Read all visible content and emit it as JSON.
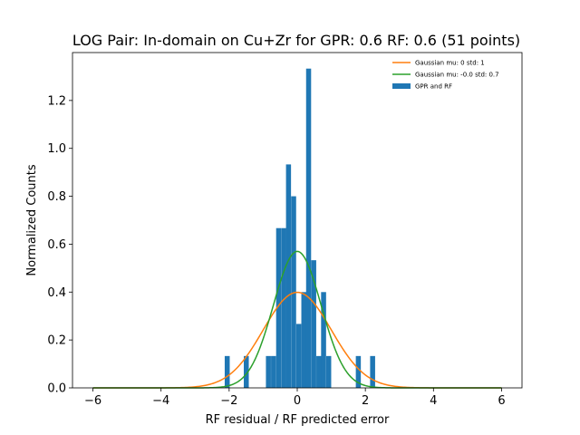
{
  "chart_data": {
    "type": "bar",
    "title": "LOG Pair: In-domain on Cu+Zr for GPR: 0.6 RF: 0.6 (51 points)",
    "xlabel": "RF residual / RF predicted error",
    "ylabel": "Normalized Counts",
    "xlim": [
      -6.6,
      6.6
    ],
    "ylim": [
      0,
      1.4
    ],
    "xticks": [
      -6,
      -4,
      -2,
      0,
      2,
      4,
      6
    ],
    "xtick_labels": [
      "−6",
      "−4",
      "−2",
      "0",
      "2",
      "4",
      "6"
    ],
    "yticks": [
      0.0,
      0.2,
      0.4,
      0.6,
      0.8,
      1.0,
      1.2
    ],
    "ytick_labels": [
      "0.0",
      "0.2",
      "0.4",
      "0.6",
      "0.8",
      "1.0",
      "1.2"
    ],
    "grid": false,
    "legend_position": "top-right",
    "histogram": {
      "name": "GPR and RF",
      "color": "#1f77b4",
      "bin_width": 0.147,
      "bins": [
        {
          "x0": -2.13,
          "height": 0.133
        },
        {
          "x0": -1.57,
          "height": 0.133
        },
        {
          "x0": -0.92,
          "height": 0.133
        },
        {
          "x0": -0.77,
          "height": 0.133
        },
        {
          "x0": -0.62,
          "height": 0.667
        },
        {
          "x0": -0.47,
          "height": 0.667
        },
        {
          "x0": -0.33,
          "height": 0.933
        },
        {
          "x0": -0.18,
          "height": 0.8
        },
        {
          "x0": -0.03,
          "height": 0.267
        },
        {
          "x0": 0.12,
          "height": 0.4
        },
        {
          "x0": 0.26,
          "height": 1.333
        },
        {
          "x0": 0.41,
          "height": 0.533
        },
        {
          "x0": 0.56,
          "height": 0.133
        },
        {
          "x0": 0.7,
          "height": 0.4
        },
        {
          "x0": 0.85,
          "height": 0.133
        },
        {
          "x0": 1.72,
          "height": 0.133
        },
        {
          "x0": 2.14,
          "height": 0.133
        }
      ]
    },
    "series": [
      {
        "name": "Gaussian mu: 0 std: 1",
        "color": "#ff7f0e",
        "mu": 0,
        "sigma": 1,
        "x_range": [
          -6,
          6
        ]
      },
      {
        "name": "Gaussian mu: -0.0 std: 0.7",
        "color": "#2ca02c",
        "mu": 0,
        "sigma": 0.7,
        "x_range": [
          -6,
          6
        ]
      }
    ]
  }
}
